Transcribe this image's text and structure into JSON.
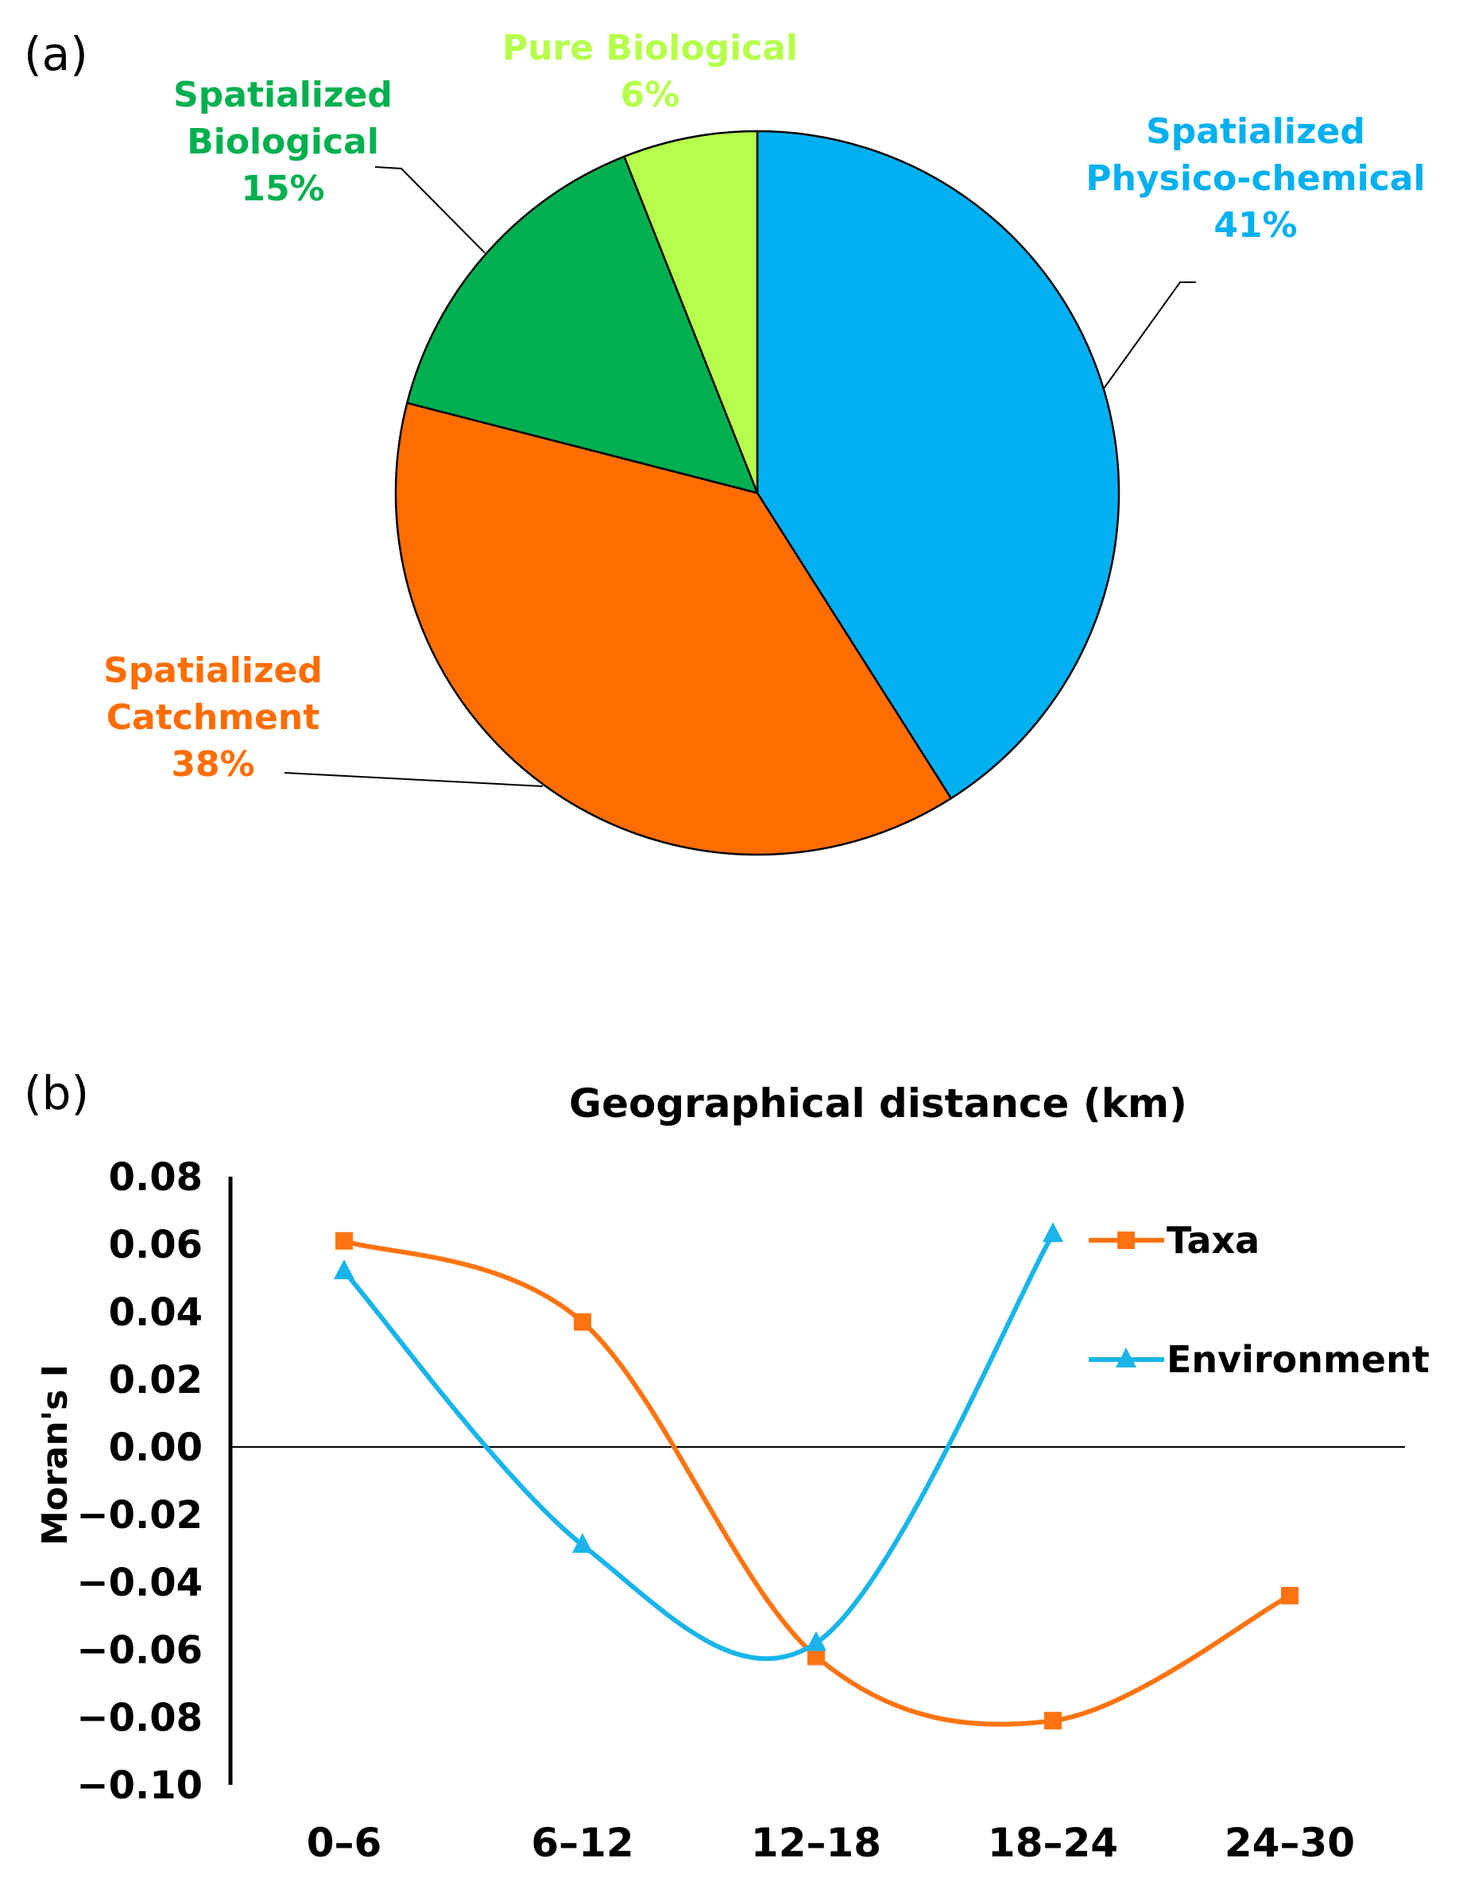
{
  "panel_a_label": "(a)",
  "panel_b_label": "(b)",
  "chart_data": [
    {
      "type": "pie",
      "slices": [
        {
          "name": "Spatialized Physico-chemical",
          "lines": [
            "Spatialized",
            "Physico-chemical"
          ],
          "pct_label": "41%",
          "value": 41,
          "color": "#00b0f0"
        },
        {
          "name": "Spatialized Catchment",
          "lines": [
            "Spatialized",
            "Catchment"
          ],
          "pct_label": "38%",
          "value": 38,
          "color": "#ff6d00"
        },
        {
          "name": "Spatialized Biological",
          "lines": [
            "Spatialized",
            "Biological"
          ],
          "pct_label": "15%",
          "value": 15,
          "color": "#00b050"
        },
        {
          "name": "Pure Biological",
          "lines": [
            "Pure Biological"
          ],
          "pct_label": "6%",
          "value": 6,
          "color": "#b6ff4c"
        }
      ]
    },
    {
      "type": "line",
      "title": "Geographical distance (km)",
      "xlabel": "",
      "ylabel": "Moran's I",
      "categories": [
        "0–6",
        "6–12",
        "12–18",
        "18–24",
        "24–30"
      ],
      "ylim": [
        -0.1,
        0.08
      ],
      "yticks": [
        "0.08",
        "0.06",
        "0.04",
        "0.02",
        "0.00",
        "−0.02",
        "−0.04",
        "−0.06",
        "−0.08",
        "−0.10"
      ],
      "ytick_values": [
        0.08,
        0.06,
        0.04,
        0.02,
        0.0,
        -0.02,
        -0.04,
        -0.06,
        -0.08,
        -0.1
      ],
      "legend_position": "right",
      "series": [
        {
          "name": "Taxa",
          "marker": "square",
          "color": "#ff7410",
          "values": [
            0.061,
            0.037,
            -0.062,
            -0.081,
            -0.044
          ]
        },
        {
          "name": "Environment",
          "marker": "triangle",
          "color": "#19b5ea",
          "values": [
            0.052,
            -0.029,
            -0.058,
            0.063,
            null
          ]
        }
      ]
    }
  ]
}
